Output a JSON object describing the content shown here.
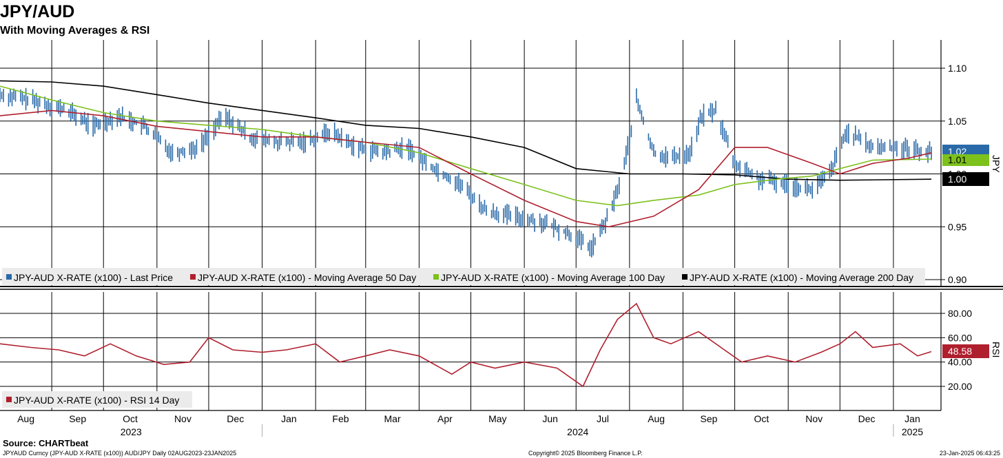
{
  "chart_data": [
    {
      "type": "line",
      "title": "JPY/AUD",
      "subtitle": "With Moving Averages & RSI",
      "ylabel": "JPY",
      "ylim": [
        0.9,
        1.11
      ],
      "yticks": [
        "1.10",
        "1.05",
        "1.00",
        "0.95",
        "0.90"
      ],
      "ytick_values": [
        1.1,
        1.05,
        1.0,
        0.95,
        0.9
      ],
      "months": [
        "Aug",
        "Sep",
        "Oct",
        "Nov",
        "Dec",
        "Jan",
        "Feb",
        "Mar",
        "Apr",
        "May",
        "Jun",
        "Jul",
        "Aug",
        "Sep",
        "Oct",
        "Nov",
        "Dec",
        "Jan"
      ],
      "years": [
        "2023",
        "2024",
        "2025"
      ],
      "x_range": [
        "2023-08-02",
        "2025-01-23"
      ],
      "series": [
        {
          "name": "JPY-AUD X-RATE (x100) - Last Price",
          "color": "#2a6aa8",
          "style": "daily-bars",
          "x": [
            "2023-08-02",
            "2023-08-20",
            "2023-09-10",
            "2023-09-25",
            "2023-10-10",
            "2023-10-25",
            "2023-11-10",
            "2023-11-25",
            "2023-12-10",
            "2023-12-25",
            "2024-01-10",
            "2024-01-25",
            "2024-02-10",
            "2024-02-25",
            "2024-03-10",
            "2024-03-25",
            "2024-04-10",
            "2024-04-25",
            "2024-05-10",
            "2024-05-25",
            "2024-06-10",
            "2024-06-25",
            "2024-07-10",
            "2024-07-20",
            "2024-07-28",
            "2024-08-05",
            "2024-08-15",
            "2024-08-25",
            "2024-09-05",
            "2024-09-12",
            "2024-09-20",
            "2024-10-01",
            "2024-10-15",
            "2024-11-01",
            "2024-11-15",
            "2024-11-25",
            "2024-12-05",
            "2024-12-20",
            "2025-01-05",
            "2025-01-23"
          ],
          "values": [
            1.075,
            1.07,
            1.06,
            1.045,
            1.055,
            1.045,
            1.02,
            1.025,
            1.055,
            1.035,
            1.03,
            1.03,
            1.04,
            1.025,
            1.02,
            1.025,
            1.005,
            0.99,
            0.965,
            0.96,
            0.955,
            0.945,
            0.93,
            0.96,
            1.0,
            1.07,
            1.02,
            1.015,
            1.02,
            1.055,
            1.06,
            1.01,
            0.995,
            0.99,
            0.985,
            1.0,
            1.04,
            1.025,
            1.025,
            1.02
          ]
        },
        {
          "name": "JPY-AUD X-RATE (x100) - Moving Average 50 Day",
          "color": "#b01f2e",
          "x": [
            "2023-08-02",
            "2023-09-01",
            "2023-10-01",
            "2023-11-01",
            "2023-12-01",
            "2024-01-01",
            "2024-02-01",
            "2024-03-01",
            "2024-04-01",
            "2024-05-01",
            "2024-06-01",
            "2024-07-01",
            "2024-07-20",
            "2024-08-15",
            "2024-09-10",
            "2024-10-01",
            "2024-10-20",
            "2024-11-15",
            "2024-12-01",
            "2024-12-20",
            "2025-01-10",
            "2025-01-23"
          ],
          "values": [
            1.055,
            1.06,
            1.055,
            1.045,
            1.04,
            1.035,
            1.035,
            1.03,
            1.025,
            1.0,
            0.975,
            0.955,
            0.95,
            0.96,
            0.985,
            1.025,
            1.025,
            1.01,
            1.0,
            1.01,
            1.015,
            1.02
          ]
        },
        {
          "name": "JPY-AUD X-RATE (x100) - Moving Average 100 Day",
          "color": "#7cc11c",
          "x": [
            "2023-08-02",
            "2023-09-01",
            "2023-10-01",
            "2023-11-01",
            "2023-12-01",
            "2024-01-01",
            "2024-02-01",
            "2024-03-01",
            "2024-04-01",
            "2024-05-01",
            "2024-06-01",
            "2024-07-01",
            "2024-07-25",
            "2024-08-15",
            "2024-09-10",
            "2024-10-01",
            "2024-10-25",
            "2024-11-15",
            "2024-12-01",
            "2024-12-20",
            "2025-01-23"
          ],
          "values": [
            1.083,
            1.07,
            1.058,
            1.05,
            1.046,
            1.042,
            1.035,
            1.03,
            1.02,
            1.005,
            0.99,
            0.975,
            0.97,
            0.975,
            0.98,
            0.99,
            0.995,
            0.998,
            1.005,
            1.013,
            1.014
          ]
        },
        {
          "name": "JPY-AUD X-RATE (x100) - Moving Average 200 Day",
          "color": "#000000",
          "x": [
            "2023-08-02",
            "2023-09-01",
            "2023-10-01",
            "2023-11-01",
            "2023-12-01",
            "2024-01-01",
            "2024-02-01",
            "2024-03-01",
            "2024-04-01",
            "2024-05-01",
            "2024-06-01",
            "2024-07-01",
            "2024-08-01",
            "2024-09-01",
            "2024-10-01",
            "2024-11-01",
            "2024-12-01",
            "2025-01-23"
          ],
          "values": [
            1.088,
            1.087,
            1.083,
            1.075,
            1.067,
            1.06,
            1.053,
            1.046,
            1.043,
            1.035,
            1.025,
            1.005,
            1.0,
            1.0,
            0.999,
            0.995,
            0.994,
            0.995
          ]
        }
      ],
      "last_values": [
        "1.02",
        "1.01",
        "1.00"
      ],
      "legend": "bottom-left",
      "grid": true
    },
    {
      "type": "line",
      "ylabel": "RSI",
      "ylim": [
        10,
        95
      ],
      "yticks": [
        "80.00",
        "60.00",
        "40.00",
        "20.00"
      ],
      "ytick_values": [
        80,
        60,
        40,
        20
      ],
      "series": [
        {
          "name": "JPY-AUD X-RATE (x100) - RSI 14 Day",
          "color": "#b01f2e",
          "x": [
            "2023-08-02",
            "2023-08-20",
            "2023-09-05",
            "2023-09-20",
            "2023-10-05",
            "2023-10-20",
            "2023-11-05",
            "2023-11-20",
            "2023-12-01",
            "2023-12-15",
            "2024-01-01",
            "2024-01-15",
            "2024-02-01",
            "2024-02-15",
            "2024-03-01",
            "2024-03-15",
            "2024-04-01",
            "2024-04-20",
            "2024-05-01",
            "2024-05-15",
            "2024-06-01",
            "2024-06-20",
            "2024-07-05",
            "2024-07-15",
            "2024-07-25",
            "2024-08-05",
            "2024-08-15",
            "2024-08-25",
            "2024-09-10",
            "2024-09-25",
            "2024-10-05",
            "2024-10-20",
            "2024-11-05",
            "2024-11-20",
            "2024-12-01",
            "2024-12-10",
            "2024-12-20",
            "2025-01-05",
            "2025-01-15",
            "2025-01-23"
          ],
          "values": [
            55,
            52,
            50,
            45,
            55,
            45,
            38,
            40,
            60,
            50,
            48,
            50,
            55,
            40,
            45,
            50,
            45,
            30,
            40,
            35,
            40,
            35,
            20,
            50,
            75,
            88,
            60,
            55,
            65,
            50,
            40,
            45,
            40,
            48,
            55,
            65,
            52,
            55,
            45,
            48.58
          ]
        }
      ],
      "last_values": [
        "48.58"
      ],
      "legend": "bottom-left",
      "grid": true
    }
  ],
  "legend": {
    "price": [
      {
        "label": "JPY-AUD X-RATE (x100) - Last Price",
        "color": "#2a6aa8"
      },
      {
        "label": "JPY-AUD X-RATE (x100) - Moving Average 50 Day",
        "color": "#b01f2e"
      },
      {
        "label": "JPY-AUD X-RATE (x100) - Moving Average 100 Day",
        "color": "#7cc11c"
      },
      {
        "label": "JPY-AUD X-RATE (x100) - Moving Average 200 Day",
        "color": "#000000"
      }
    ],
    "rsi": [
      {
        "label": "JPY-AUD X-RATE (x100) - RSI 14 Day",
        "color": "#b01f2e"
      }
    ]
  },
  "footer": {
    "source": "Source: CHARTbeat",
    "ticker": "JPYAUD Curncy (JPY-AUD X-RATE (x100)) AUD/JPY  Daily 02AUG2023-23JAN2025",
    "copyright": "Copyright© 2025 Bloomberg Finance L.P.",
    "timestamp": "23-Jan-2025 06:43:25"
  }
}
